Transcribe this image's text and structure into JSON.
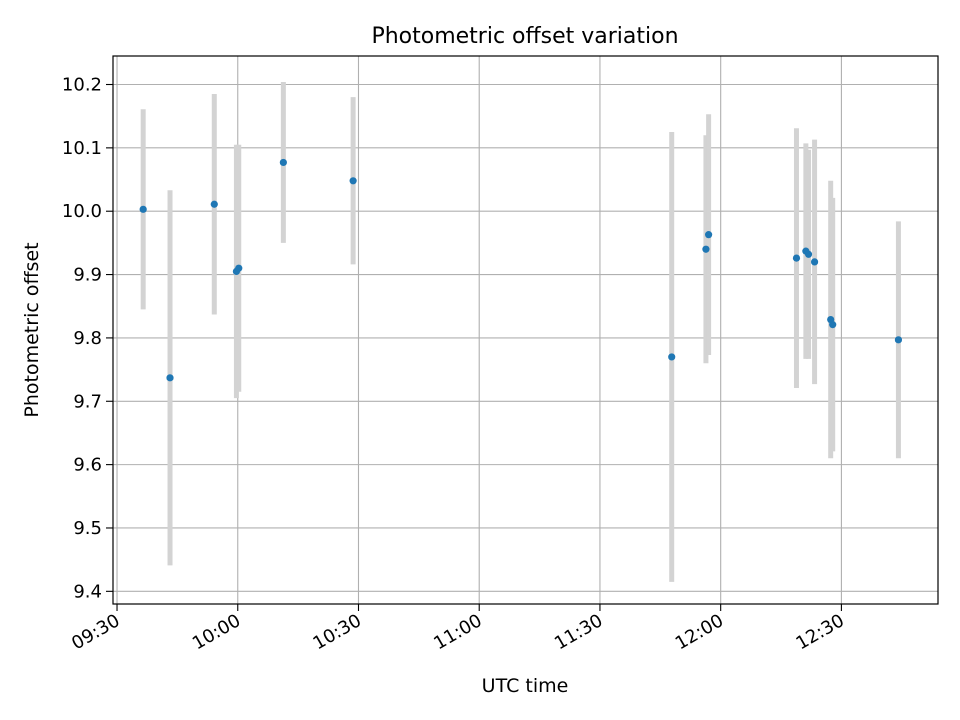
{
  "chart_data": {
    "type": "scatter",
    "title": "Photometric offset variation",
    "xlabel": "UTC time",
    "ylabel": "Photometric offset",
    "x_ticks": [
      "09:30",
      "10:00",
      "10:30",
      "11:00",
      "11:30",
      "12:00",
      "12:30"
    ],
    "y_ticks": [
      "9.4",
      "9.5",
      "9.6",
      "9.7",
      "9.8",
      "9.9",
      "10.0",
      "10.1",
      "10.2"
    ],
    "xlim": [
      "09:29",
      "12:54"
    ],
    "ylim": [
      9.38,
      10.245
    ],
    "grid": true,
    "legend": false,
    "colors": {
      "points": "#1f77b4",
      "error_bars": "#d3d3d3",
      "grid": "#b0b0b0"
    },
    "points": [
      {
        "x": "09:36:30",
        "y": 10.003,
        "err": 0.158
      },
      {
        "x": "09:43:10",
        "y": 9.737,
        "err": 0.296
      },
      {
        "x": "09:54:10",
        "y": 10.011,
        "err": 0.174
      },
      {
        "x": "09:59:40",
        "y": 9.905,
        "err": 0.2
      },
      {
        "x": "10:00:15",
        "y": 9.91,
        "err": 0.195
      },
      {
        "x": "10:11:20",
        "y": 10.077,
        "err": 0.127
      },
      {
        "x": "10:28:40",
        "y": 10.048,
        "err": 0.132
      },
      {
        "x": "11:47:50",
        "y": 9.77,
        "err": 0.355
      },
      {
        "x": "11:56:20",
        "y": 9.94,
        "err": 0.18
      },
      {
        "x": "11:57:00",
        "y": 9.963,
        "err": 0.19
      },
      {
        "x": "12:18:50",
        "y": 9.926,
        "err": 0.205
      },
      {
        "x": "12:21:10",
        "y": 9.937,
        "err": 0.17
      },
      {
        "x": "12:21:50",
        "y": 9.932,
        "err": 0.165
      },
      {
        "x": "12:23:20",
        "y": 9.92,
        "err": 0.193
      },
      {
        "x": "12:27:20",
        "y": 9.829,
        "err": 0.219
      },
      {
        "x": "12:27:50",
        "y": 9.821,
        "err": 0.2
      },
      {
        "x": "12:44:10",
        "y": 9.797,
        "err": 0.187
      }
    ]
  }
}
